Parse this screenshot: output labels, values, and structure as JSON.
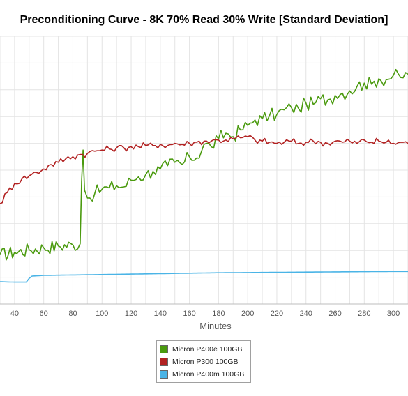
{
  "chart_data": {
    "type": "line",
    "title": "Preconditioning Curve - 8K 70% Read 30% Write [Standard Deviation]",
    "xlabel": "Minutes",
    "ylabel": "",
    "xlim": [
      30,
      310
    ],
    "ylim": [
      0,
      120
    ],
    "x_ticks": [
      40,
      60,
      80,
      100,
      120,
      140,
      160,
      180,
      200,
      220,
      240,
      260,
      280,
      300
    ],
    "grid": true,
    "legend_position": "bottom-center",
    "series": [
      {
        "name": "Micron P400e 100GB",
        "color": "#4a9a0e",
        "x": [
          30,
          40,
          50,
          60,
          70,
          80,
          85,
          86,
          87,
          88,
          90,
          95,
          100,
          105,
          110,
          115,
          120,
          125,
          130,
          135,
          140,
          145,
          150,
          155,
          160,
          165,
          170,
          175,
          180,
          185,
          190,
          195,
          200,
          205,
          210,
          215,
          220,
          225,
          230,
          235,
          240,
          245,
          250,
          255,
          260,
          265,
          270,
          275,
          280,
          285,
          290,
          295,
          300,
          305,
          310
        ],
        "y": [
          22.0,
          23.2,
          24.3,
          25.2,
          26.0,
          26.5,
          27.0,
          55.0,
          69.0,
          51.0,
          47.5,
          49.5,
          51.5,
          52.0,
          53.0,
          52.5,
          55.5,
          57.0,
          58.0,
          59.5,
          60.5,
          62.0,
          63.5,
          62.5,
          66.0,
          65.5,
          71.5,
          70.5,
          74.0,
          76.5,
          75.0,
          78.0,
          80.0,
          82.5,
          83.0,
          84.5,
          85.0,
          87.0,
          88.0,
          87.5,
          90.0,
          89.5,
          92.0,
          91.5,
          93.5,
          94.5,
          95.5,
          97.5,
          99.0,
          98.5,
          101.0,
          100.5,
          102.5,
          101.5,
          103.0
        ]
      },
      {
        "name": "Micron P300 100GB",
        "color": "#b22222",
        "x": [
          30,
          35,
          40,
          45,
          50,
          55,
          60,
          65,
          70,
          75,
          80,
          85,
          90,
          95,
          100,
          105,
          110,
          115,
          120,
          125,
          130,
          135,
          140,
          145,
          150,
          155,
          160,
          165,
          170,
          175,
          180,
          185,
          190,
          195,
          200,
          205,
          210,
          215,
          220,
          225,
          230,
          235,
          240,
          245,
          250,
          255,
          260,
          265,
          270,
          275,
          280,
          285,
          290,
          295,
          300,
          305,
          310
        ],
        "y": [
          45.0,
          50.0,
          54.0,
          56.0,
          57.5,
          59.0,
          60.5,
          62.5,
          63.5,
          65.0,
          66.0,
          67.0,
          67.5,
          68.5,
          69.0,
          69.5,
          70.0,
          70.0,
          70.5,
          70.5,
          71.0,
          71.0,
          71.5,
          71.0,
          72.0,
          71.5,
          72.0,
          72.5,
          73.0,
          73.0,
          73.5,
          73.5,
          74.0,
          74.5,
          75.0,
          73.5,
          73.0,
          72.5,
          72.0,
          72.5,
          73.0,
          72.0,
          72.5,
          73.0,
          72.5,
          72.0,
          73.0,
          72.5,
          73.0,
          72.0,
          73.5,
          72.5,
          73.0,
          72.5,
          72.0,
          72.5,
          72.0
        ]
      },
      {
        "name": "Micron P400m 100GB",
        "color": "#4ab4e6",
        "x": [
          30,
          40,
          48,
          50,
          52,
          60,
          80,
          100,
          120,
          140,
          160,
          180,
          200,
          220,
          240,
          260,
          280,
          300,
          310
        ],
        "y": [
          10.0,
          9.8,
          9.8,
          11.5,
          12.5,
          12.8,
          13.0,
          13.2,
          13.4,
          13.6,
          13.8,
          14.0,
          14.1,
          14.2,
          14.3,
          14.4,
          14.5,
          14.6,
          14.6
        ]
      }
    ]
  }
}
